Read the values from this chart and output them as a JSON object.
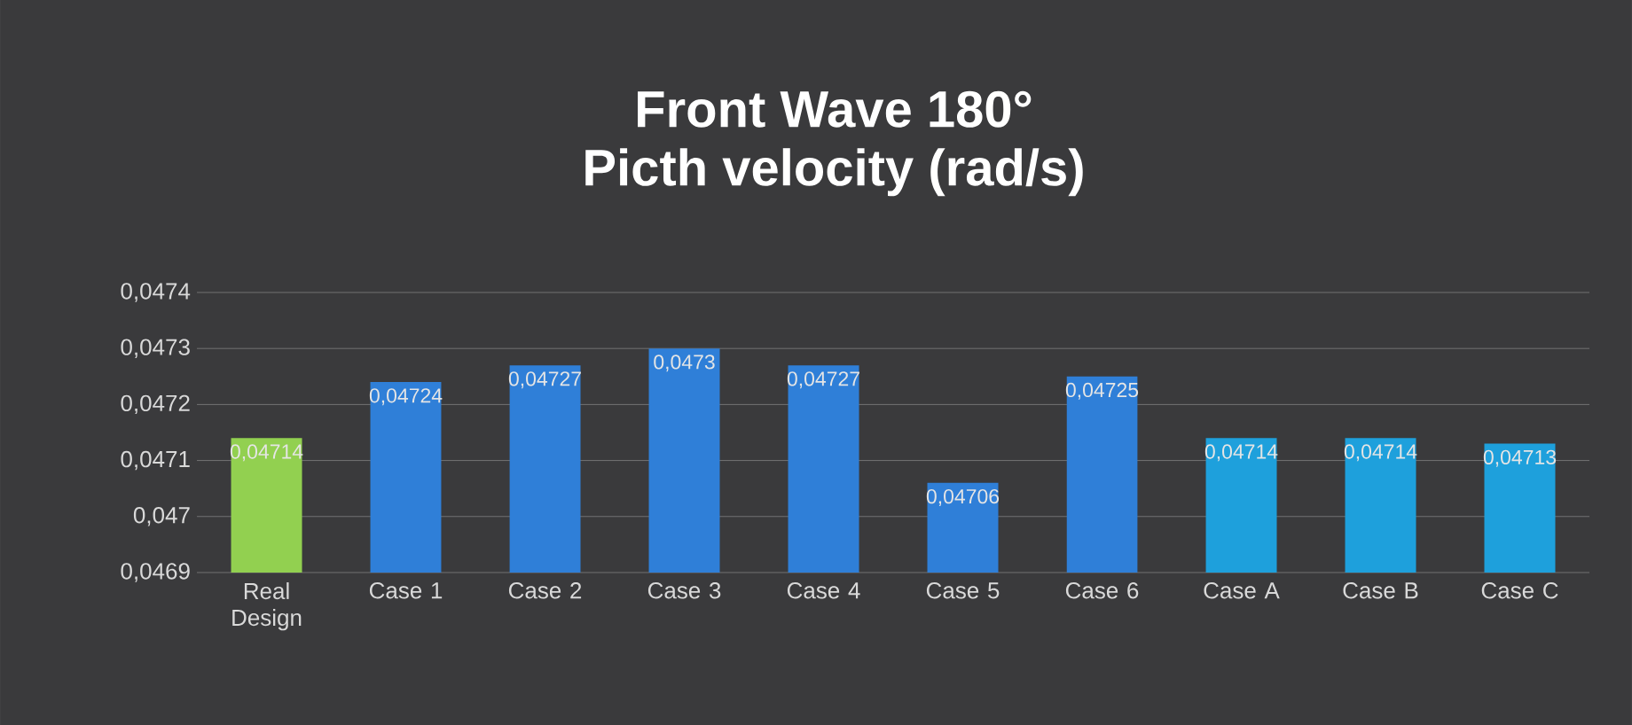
{
  "chart_data": {
    "type": "bar",
    "title": "Front Wave 180°",
    "subtitle": "Picth velocity (rad/s)",
    "categories": [
      "Real Design",
      "Case 1",
      "Case 2",
      "Case 3",
      "Case 4",
      "Case 5",
      "Case 6",
      "Case A",
      "Case B",
      "Case C"
    ],
    "values": [
      0.04714,
      0.04724,
      0.04727,
      0.0473,
      0.04727,
      0.04706,
      0.04725,
      0.04714,
      0.04714,
      0.04713
    ],
    "value_labels": [
      "0,04714",
      "0,04724",
      "0,04727",
      "0,0473",
      "0,04727",
      "0,04706",
      "0,04725",
      "0,04714",
      "0,04714",
      "0,04713"
    ],
    "colors": [
      "#92d050",
      "#2f7fd8",
      "#2f7fd8",
      "#2f7fd8",
      "#2f7fd8",
      "#2f7fd8",
      "#2f7fd8",
      "#1ea0dc",
      "#1ea0dc",
      "#1ea0dc"
    ],
    "ylim": [
      0.0469,
      0.0474
    ],
    "yticks": [
      {
        "value": 0.0469,
        "label": "0,0469"
      },
      {
        "value": 0.047,
        "label": "0,047"
      },
      {
        "value": 0.0471,
        "label": "0,0471"
      },
      {
        "value": 0.0472,
        "label": "0,0472"
      },
      {
        "value": 0.0473,
        "label": "0,0473"
      },
      {
        "value": 0.0474,
        "label": "0,0474"
      }
    ],
    "grid": "y"
  }
}
